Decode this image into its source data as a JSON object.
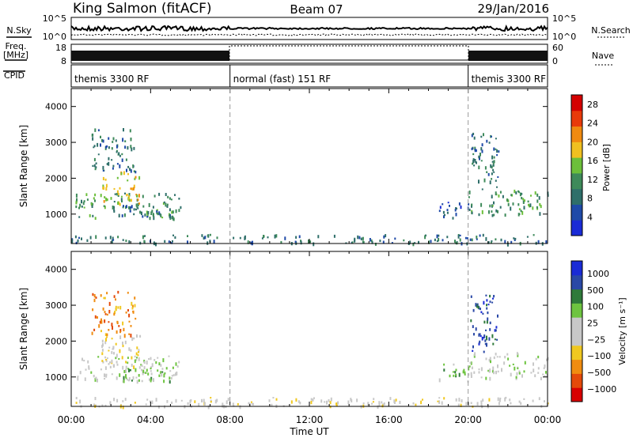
{
  "header": {
    "station": "King Salmon (fitACF)",
    "beam": "Beam 07",
    "date": "29/Jan/2016"
  },
  "strips": {
    "nsky_label": "N.Sky",
    "nsearch_label": "N.Search",
    "noise_ticks": [
      "10^5",
      "10^0"
    ],
    "freq_label_line1": "Freq.",
    "freq_label_line2": "[MHz]",
    "freq_ticks": [
      "18",
      "8"
    ],
    "nave_label": "Nave",
    "nave_ticks": [
      "60",
      "0"
    ],
    "cpid_label": "CPID"
  },
  "modes": [
    {
      "label": "themis 3300 RF",
      "start_hour": 0,
      "end_hour": 8
    },
    {
      "label": "normal (fast) 151 RF",
      "start_hour": 8,
      "end_hour": 20
    },
    {
      "label": "themis 3300 RF",
      "start_hour": 20,
      "end_hour": 24
    }
  ],
  "colors": {
    "power_scale": [
      "#1a2bd6",
      "#1f4aa8",
      "#2f6f6a",
      "#3e8a5a",
      "#6cbf3a",
      "#f0c020",
      "#f08a10",
      "#e83a0a",
      "#d40000"
    ],
    "velocity_scale": [
      "#1a2bd6",
      "#2a48a6",
      "#2f7a3a",
      "#6ec440",
      "#c8c8c8",
      "#c8c8c8",
      "#f0c820",
      "#f08c10",
      "#e44a0a",
      "#d80000"
    ]
  },
  "chart_data": [
    {
      "type": "heatmap",
      "title": "Power",
      "xlabel": "Time UT",
      "ylabel": "Slant Range [km]",
      "xlim_hours": [
        0,
        24
      ],
      "ylim": [
        180,
        4500
      ],
      "x_ticks": [
        "00:00",
        "04:00",
        "08:00",
        "12:00",
        "16:00",
        "20:00",
        "00:00"
      ],
      "y_ticks": [
        1000,
        2000,
        3000,
        4000
      ],
      "colorbar_label": "Power [dB]",
      "colorbar_ticks": [
        4,
        8,
        12,
        16,
        20,
        24,
        28
      ],
      "colorbar_range": [
        0,
        30
      ],
      "echo_regions": [
        {
          "t0": 0.2,
          "t1": 5.5,
          "r0": 900,
          "r1": 1600,
          "level": 12
        },
        {
          "t0": 1.5,
          "t1": 3.5,
          "r0": 1300,
          "r1": 2200,
          "level": 18
        },
        {
          "t0": 1.0,
          "t1": 3.2,
          "r0": 2200,
          "r1": 3400,
          "level": 6
        },
        {
          "t0": 2.5,
          "t1": 5.2,
          "r0": 900,
          "r1": 1300,
          "level": 8
        },
        {
          "t0": 0.0,
          "t1": 24.0,
          "r0": 200,
          "r1": 450,
          "level": 6
        },
        {
          "t0": 18.5,
          "t1": 20.0,
          "r0": 900,
          "r1": 1400,
          "level": 4
        },
        {
          "t0": 20.0,
          "t1": 24.0,
          "r0": 1000,
          "r1": 1700,
          "level": 10
        },
        {
          "t0": 20.1,
          "t1": 21.5,
          "r0": 1700,
          "r1": 3300,
          "level": 8
        }
      ]
    },
    {
      "type": "heatmap",
      "title": "Velocity",
      "xlabel": "Time UT",
      "ylabel": "Slant Range [km]",
      "xlim_hours": [
        0,
        24
      ],
      "ylim": [
        180,
        4500
      ],
      "x_ticks": [
        "00:00",
        "04:00",
        "08:00",
        "12:00",
        "16:00",
        "20:00",
        "00:00"
      ],
      "y_ticks": [
        1000,
        2000,
        3000,
        4000
      ],
      "colorbar_label": "Velocity [m s⁻¹]",
      "colorbar_ticks": [
        "1000",
        "500",
        "100",
        "25",
        "−25",
        "−100",
        "−500",
        "−1000"
      ],
      "echo_regions": [
        {
          "t0": 0.2,
          "t1": 5.5,
          "r0": 900,
          "r1": 1600,
          "level": 25
        },
        {
          "t0": 1.5,
          "t1": 3.5,
          "r0": 1300,
          "r1": 2200,
          "level": -25
        },
        {
          "t0": 1.0,
          "t1": 3.2,
          "r0": 2200,
          "r1": 3400,
          "level": -100
        },
        {
          "t0": 2.5,
          "t1": 5.2,
          "r0": 900,
          "r1": 1300,
          "level": 100
        },
        {
          "t0": 0.0,
          "t1": 24.0,
          "r0": 200,
          "r1": 450,
          "level": -25
        },
        {
          "t0": 18.5,
          "t1": 20.0,
          "r0": 900,
          "r1": 1400,
          "level": 100
        },
        {
          "t0": 20.0,
          "t1": 24.0,
          "r0": 1000,
          "r1": 1700,
          "level": 25
        },
        {
          "t0": 20.1,
          "t1": 21.5,
          "r0": 1700,
          "r1": 3300,
          "level": 500
        }
      ]
    }
  ]
}
